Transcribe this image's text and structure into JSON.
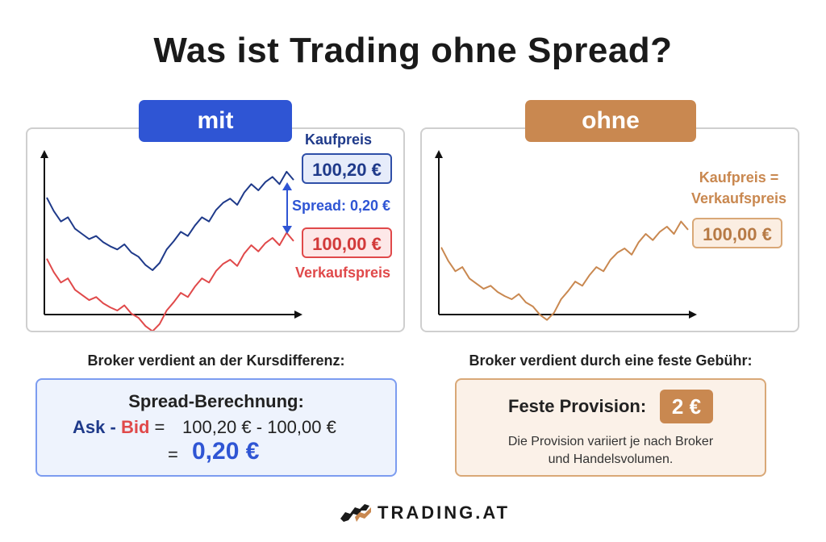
{
  "title": "Was ist Trading ohne Spread?",
  "left": {
    "badge": "mit Spread",
    "buy_label": "Kaufpreis",
    "buy_price": "100,20 €",
    "spread_label": "Spread: 0,20 €",
    "sell_price": "100,00 €",
    "sell_label": "Verkaufspreis",
    "subheading": "Broker verdient an der Kursdifferenz:",
    "calc": {
      "title": "Spread-Berechnung:",
      "ask": "Ask",
      "dash": "-",
      "bid": "Bid",
      "eq1": "=",
      "expr": "100,20 € - 100,00 €",
      "eq2": "=",
      "result": "0,20 €"
    }
  },
  "right": {
    "badge": "ohne Spread",
    "label_line1": "Kaufpreis =",
    "label_line2": "Verkaufspreis",
    "price": "100,00 €",
    "subheading": "Broker verdient durch eine feste Gebühr:",
    "fee": {
      "label": "Feste Provision:",
      "value": "2 €",
      "note_line1": "Die Provision variiert je nach Broker",
      "note_line2": "und Handelsvolumen."
    }
  },
  "logo": {
    "text": "TRADING.AT"
  },
  "colors": {
    "blue": "#2f55d4",
    "navy": "#1f3a8a",
    "red": "#e0494a",
    "orange": "#c98850"
  },
  "chart_data": {
    "type": "line",
    "series": [
      {
        "values": [
          100.05,
          99.92,
          99.82,
          99.86,
          99.75,
          99.7,
          99.65,
          99.68,
          99.62,
          99.58,
          99.55,
          99.6,
          99.52,
          99.48,
          99.4,
          99.35,
          99.42,
          99.55,
          99.63,
          99.72,
          99.68,
          99.78,
          99.86,
          99.82,
          99.93,
          100.0,
          100.04,
          99.98,
          100.1,
          100.18,
          100.12,
          100.2,
          100.25,
          100.18,
          100.3,
          100.22
        ]
      },
      {
        "values": [
          99.85,
          99.72,
          99.62,
          99.66,
          99.55,
          99.5,
          99.45,
          99.48,
          99.42,
          99.38,
          99.35,
          99.4,
          99.32,
          99.28,
          99.2,
          99.15,
          99.22,
          99.35,
          99.43,
          99.52,
          99.48,
          99.58,
          99.66,
          99.62,
          99.73,
          99.8,
          99.84,
          99.78,
          99.9,
          99.98,
          99.92,
          100.0,
          100.05,
          99.98,
          100.1,
          100.02
        ]
      }
    ]
  }
}
